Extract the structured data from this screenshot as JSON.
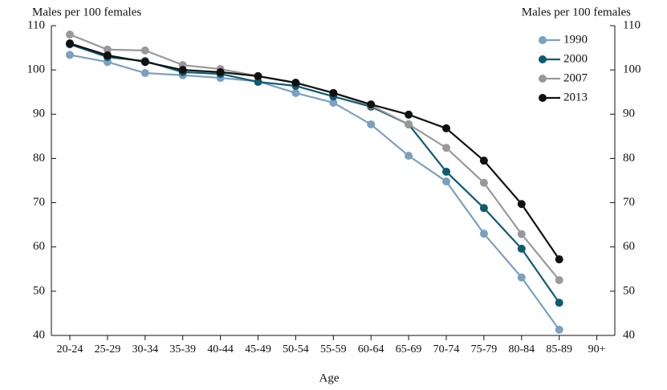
{
  "chart_data": {
    "type": "line",
    "y_label": "Males per 100 females",
    "y2_label": "Males per 100 females",
    "x_label": "Age",
    "categories": [
      "20-24",
      "25-29",
      "30-34",
      "35-39",
      "40-44",
      "45-49",
      "50-54",
      "55-59",
      "60-64",
      "65-69",
      "70-74",
      "75-79",
      "80-84",
      "85-89",
      "90+"
    ],
    "series": [
      {
        "name": "1990",
        "color": "#7ba0c0",
        "values": [
          103.4,
          101.8,
          99.3,
          98.8,
          98.2,
          97.4,
          94.8,
          92.6,
          87.7,
          80.6,
          74.8,
          63.0,
          53.1,
          41.3,
          null
        ]
      },
      {
        "name": "2000",
        "color": "#0d5b73",
        "values": [
          105.8,
          102.9,
          102.0,
          99.5,
          99.1,
          97.3,
          96.4,
          94.0,
          91.7,
          87.7,
          77.0,
          68.8,
          59.6,
          47.4,
          null
        ]
      },
      {
        "name": "2007",
        "color": "#999999",
        "values": [
          108.0,
          104.6,
          104.4,
          101.1,
          100.2,
          98.6,
          97.1,
          94.8,
          92.0,
          87.7,
          82.4,
          74.5,
          62.9,
          52.5,
          null
        ]
      },
      {
        "name": "2013",
        "color": "#111111",
        "values": [
          106.0,
          103.3,
          101.8,
          100.0,
          99.5,
          98.6,
          97.1,
          94.8,
          92.2,
          89.9,
          86.8,
          79.5,
          69.7,
          57.2,
          null
        ]
      }
    ],
    "ylim": [
      40,
      110
    ],
    "yticks": [
      40,
      50,
      60,
      70,
      80,
      90,
      100,
      110
    ],
    "y2lim": [
      40,
      110
    ],
    "y2ticks": [
      40,
      50,
      60,
      70,
      80,
      90,
      100,
      110
    ],
    "legend": "top-right"
  }
}
